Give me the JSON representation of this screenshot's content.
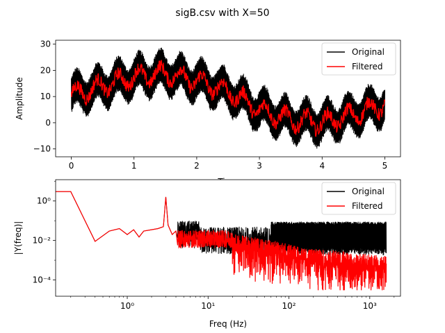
{
  "suptitle": "sigB.csv with X=50",
  "colors": {
    "original": "#000000",
    "filtered": "#ff0000"
  },
  "chart_data": [
    {
      "type": "line",
      "xlabel": "Time",
      "ylabel": "Amplitude",
      "xlim": [
        -0.25,
        5.25
      ],
      "ylim": [
        -13,
        31.5
      ],
      "xticks": [
        "0",
        "1",
        "2",
        "3",
        "4",
        "5"
      ],
      "yticks": [
        "−10",
        "0",
        "10",
        "20",
        "30"
      ],
      "legend_position": "upper right",
      "trend_time": [
        0,
        0.5,
        1.0,
        1.5,
        2.0,
        2.5,
        3.0,
        3.5,
        4.0,
        4.5,
        5.0
      ],
      "trend_value": [
        10.5,
        14,
        17.5,
        19,
        16,
        12,
        5,
        1,
        0,
        3,
        7
      ],
      "series": [
        {
          "name": "Original",
          "color": "#000000",
          "envelope_halfwidth": 7,
          "oscillation_hz": 3
        },
        {
          "name": "Filtered",
          "color": "#ff0000",
          "envelope_halfwidth": 2.5,
          "oscillation_hz": 3
        }
      ]
    },
    {
      "type": "line",
      "xscale": "log",
      "yscale": "log",
      "xlabel": "Freq (Hz)",
      "ylabel": "|Y(freq)|",
      "xlim": [
        0.13,
        2400
      ],
      "ylim": [
        1.5e-05,
        12
      ],
      "xticks": [
        "10⁰",
        "10¹",
        "10²",
        "10³"
      ],
      "yticks": [
        "10⁻⁴",
        "10⁻²",
        "10⁰"
      ],
      "legend_position": "upper right",
      "shared_low_freq": {
        "freq": [
          0.13,
          0.2,
          0.4,
          0.6,
          0.8,
          1.0,
          1.2,
          1.4,
          1.6,
          2.0,
          2.4,
          2.8,
          3.0,
          3.2,
          3.6,
          4.0
        ],
        "amp": [
          3.0,
          3.0,
          0.009,
          0.03,
          0.04,
          0.02,
          0.035,
          0.015,
          0.03,
          0.035,
          0.04,
          0.05,
          1.6,
          0.06,
          0.02,
          0.03
        ]
      },
      "series": [
        {
          "name": "Original",
          "color": "#000000",
          "noise_floor": 0.01,
          "noise_band": [
            0.003,
            0.09
          ]
        },
        {
          "name": "Filtered",
          "color": "#ff0000",
          "rolloff_from_hz": 8,
          "rolloff_to": 0.0002
        }
      ]
    }
  ]
}
